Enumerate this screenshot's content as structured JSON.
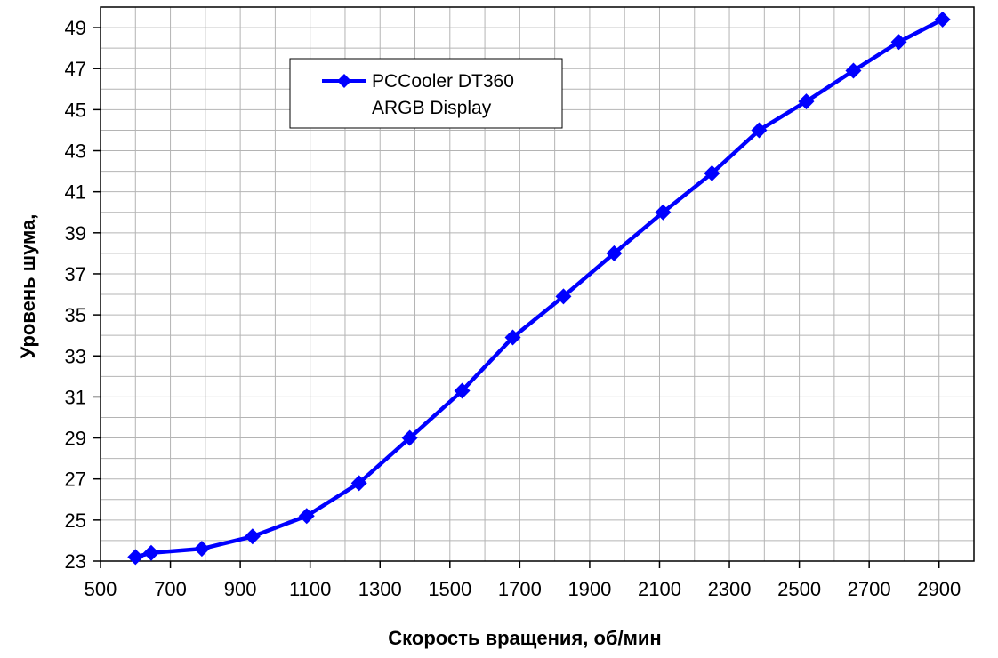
{
  "chart_data": {
    "type": "line",
    "title": "",
    "xlabel": "Скорость вращения, об/мин",
    "ylabel": "Уровень шума,",
    "xlim": [
      500,
      3000
    ],
    "ylim": [
      23,
      50
    ],
    "xticks": [
      500,
      700,
      900,
      1100,
      1300,
      1500,
      1700,
      1900,
      2100,
      2300,
      2500,
      2700,
      2900
    ],
    "yticks": [
      23,
      25,
      27,
      29,
      31,
      33,
      35,
      37,
      39,
      41,
      43,
      45,
      47,
      49
    ],
    "grid": true,
    "legend_position": "top-center",
    "colors": {
      "series": "#0000ff",
      "grid": "#b4b4b4",
      "axis": "#000000"
    },
    "series": [
      {
        "name": "PCCooler DT360 ARGB Display",
        "legend_lines": [
          "PCCooler DT360",
          "ARGB Display"
        ],
        "marker": "diamond",
        "x": [
          600,
          645,
          790,
          935,
          1090,
          1240,
          1385,
          1535,
          1680,
          1825,
          1970,
          2110,
          2250,
          2385,
          2520,
          2655,
          2785,
          2910
        ],
        "y": [
          23.2,
          23.4,
          23.6,
          24.2,
          25.2,
          26.8,
          29.0,
          31.3,
          33.9,
          35.9,
          38.0,
          40.0,
          41.9,
          44.0,
          45.4,
          46.9,
          48.3,
          49.4
        ]
      }
    ]
  }
}
